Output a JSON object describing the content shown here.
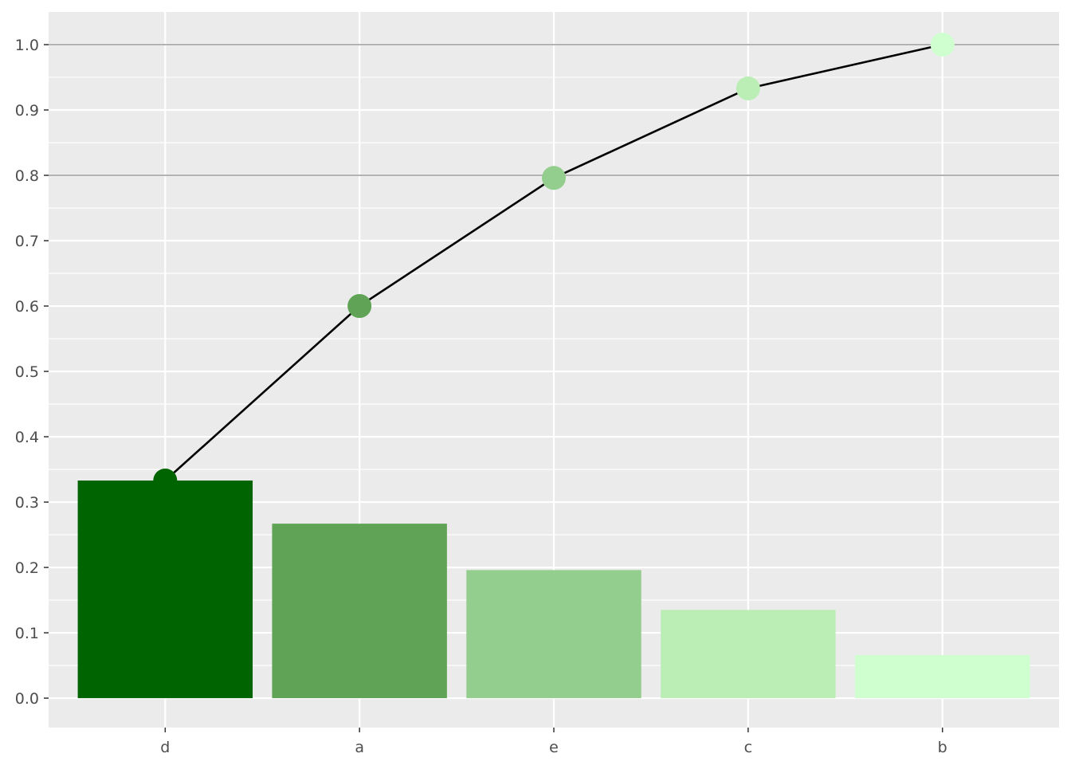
{
  "chart_data": {
    "type": "bar",
    "title": "",
    "xlabel": "",
    "ylabel": "",
    "categories": [
      "d",
      "a",
      "e",
      "c",
      "b"
    ],
    "series": [
      {
        "type": "bar",
        "values": [
          0.333,
          0.267,
          0.196,
          0.135,
          0.066
        ]
      },
      {
        "type": "line",
        "values": [
          0.333,
          0.6,
          0.796,
          0.933,
          1.0
        ]
      }
    ],
    "colors": [
      "#006400",
      "#61A356",
      "#94CE8E",
      "#BAEEB4",
      "#CFFFCF"
    ],
    "line_color": "#000000",
    "ylim": [
      -0.045,
      1.05
    ],
    "yticks": [
      0.0,
      0.1,
      0.2,
      0.3,
      0.4,
      0.5,
      0.6,
      0.7,
      0.8,
      0.9,
      1.0
    ],
    "ytick_labels": [
      "0.0",
      "0.1",
      "0.2",
      "0.3",
      "0.4",
      "0.5",
      "0.6",
      "0.7",
      "0.8",
      "0.9",
      "1.0"
    ],
    "reference_lines": [
      0.8,
      1.0
    ],
    "grid": true,
    "panel_background": "#EBEBEB",
    "legend": "none"
  }
}
